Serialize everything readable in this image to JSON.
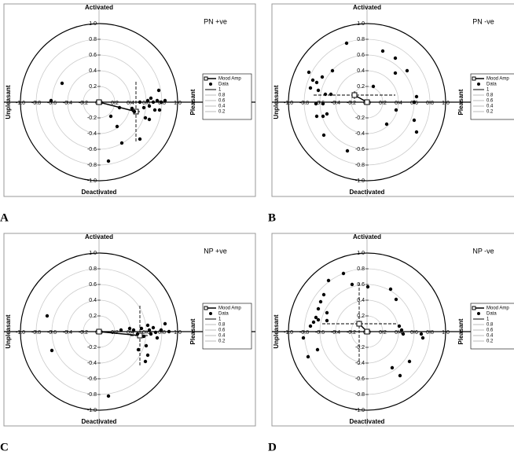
{
  "chart_data": [
    {
      "type": "scatter",
      "panel": "A",
      "title": "PN +ve",
      "top_label": "Activated",
      "bottom_label": "Deactivated",
      "left_label": "Unpleasant",
      "right_label": "Pleasant",
      "xlim": [
        -1,
        1
      ],
      "ylim": [
        -1,
        1
      ],
      "xticks": [
        {
          "value": -1,
          "label": "-1.0"
        },
        {
          "value": -0.8,
          "label": "-0.8"
        },
        {
          "value": -0.6,
          "label": "-0.6"
        },
        {
          "value": -0.4,
          "label": "-0.4"
        },
        {
          "value": -0.2,
          "label": "-0.2"
        },
        {
          "value": 0,
          "label": "0.0"
        },
        {
          "value": 0.2,
          "label": "0.2"
        },
        {
          "value": 0.4,
          "label": "0.4"
        },
        {
          "value": 0.6,
          "label": "0.6"
        },
        {
          "value": 0.8,
          "label": "0.8"
        },
        {
          "value": 1,
          "label": "1.0"
        }
      ],
      "yticks": [
        {
          "value": -1,
          "label": "-1.0"
        },
        {
          "value": -0.8,
          "label": "-0.8"
        },
        {
          "value": -0.6,
          "label": "-0.6"
        },
        {
          "value": -0.4,
          "label": "-0.4"
        },
        {
          "value": -0.2,
          "label": "-0.2"
        },
        {
          "value": 0,
          "label": "0.0"
        },
        {
          "value": 0.2,
          "label": "0.2"
        },
        {
          "value": 0.4,
          "label": "0.4"
        },
        {
          "value": 0.6,
          "label": "0.6"
        },
        {
          "value": 0.8,
          "label": "0.8"
        },
        {
          "value": 1,
          "label": "1.0"
        }
      ],
      "rings": [
        1,
        0.8,
        0.6,
        0.4,
        0.2
      ],
      "series": [
        {
          "name": "Mood Amp",
          "color": "#000000",
          "x": [
            0,
            0.47
          ],
          "y": [
            0,
            -0.12
          ],
          "x_error": 0.05,
          "y_error": 0.38
        },
        {
          "name": "Data",
          "color": "#000000",
          "x": [
            -0.61,
            -0.47,
            0.15,
            0.23,
            0.29,
            0.12,
            0.42,
            0.45,
            0.52,
            0.57,
            0.59,
            0.62,
            0.64,
            0.66,
            0.69,
            0.71,
            0.74,
            0.76,
            0.77,
            0.79,
            0.84,
            0.52,
            0.64,
            0.26
          ],
          "y": [
            0.02,
            0.24,
            -0.18,
            -0.31,
            -0.52,
            -0.75,
            -0.08,
            -0.12,
            0,
            -0.07,
            -0.2,
            0.02,
            -0.05,
            0.05,
            0,
            -0.1,
            0.02,
            0.15,
            -0.1,
            0,
            0.02,
            -0.47,
            -0.22,
            -0.07
          ]
        }
      ]
    },
    {
      "type": "scatter",
      "panel": "B",
      "title": "PN -ve",
      "top_label": "Activated",
      "bottom_label": "Deactivated",
      "left_label": "Unpleasant",
      "right_label": "Pleasant",
      "xlim": [
        -1,
        1
      ],
      "ylim": [
        -1,
        1
      ],
      "xticks": [
        {
          "value": -1,
          "label": "-1.0"
        },
        {
          "value": -0.8,
          "label": "-0.8"
        },
        {
          "value": -0.6,
          "label": "-0.6"
        },
        {
          "value": -0.4,
          "label": "-0.4"
        },
        {
          "value": -0.2,
          "label": "-0.2"
        },
        {
          "value": 0,
          "label": "0.0"
        },
        {
          "value": 0.2,
          "label": "0.2"
        },
        {
          "value": 0.4,
          "label": "0.4"
        },
        {
          "value": 0.6,
          "label": "0.6"
        },
        {
          "value": 0.8,
          "label": "0.8"
        },
        {
          "value": 1,
          "label": "1.0"
        }
      ],
      "yticks": [
        {
          "value": -1,
          "label": "-1.0"
        },
        {
          "value": -0.8,
          "label": "-0.8"
        },
        {
          "value": -0.6,
          "label": "-0.6"
        },
        {
          "value": -0.4,
          "label": "-0.4"
        },
        {
          "value": -0.2,
          "label": "-0.2"
        },
        {
          "value": 0,
          "label": "0.0"
        },
        {
          "value": 0.2,
          "label": "0.2"
        },
        {
          "value": 0.4,
          "label": "0.4"
        },
        {
          "value": 0.6,
          "label": "0.6"
        },
        {
          "value": 0.8,
          "label": "0.8"
        },
        {
          "value": 1,
          "label": "1.0"
        }
      ],
      "rings": [
        1,
        0.8,
        0.6,
        0.4,
        0.2
      ],
      "series": [
        {
          "name": "Mood Amp",
          "color": "#000000",
          "x": [
            0,
            -0.16
          ],
          "y": [
            0,
            0.09
          ],
          "x_error": 0.52,
          "y_error": 0.05
        },
        {
          "name": "Data",
          "color": "#000000",
          "x": [
            -0.26,
            0.2,
            0.36,
            0.51,
            0.36,
            -0.74,
            -0.69,
            -0.64,
            -0.57,
            -0.44,
            -0.72,
            -0.62,
            -0.53,
            -0.46,
            -0.65,
            -0.56,
            -0.64,
            -0.56,
            -0.51,
            -0.55,
            -0.25,
            0.08,
            0.25,
            0.37,
            0.63,
            0.6,
            0.6,
            0.63
          ],
          "y": [
            0.75,
            0.65,
            0.56,
            0.4,
            0.37,
            0.38,
            0.28,
            0.25,
            0.32,
            0.4,
            0.18,
            0.15,
            0.1,
            0.1,
            -0.02,
            -0.02,
            -0.18,
            -0.18,
            -0.15,
            -0.42,
            -0.62,
            0.2,
            -0.28,
            -0.1,
            0.07,
            0,
            -0.23,
            -0.38
          ]
        }
      ]
    },
    {
      "type": "scatter",
      "panel": "C",
      "title": "NP +ve",
      "top_label": "Activated",
      "bottom_label": "Deactivated",
      "left_label": "Unpleasant",
      "right_label": "Pleasant",
      "xlim": [
        -1,
        1
      ],
      "ylim": [
        -1,
        1
      ],
      "xticks": [
        {
          "value": -1,
          "label": "-1.0"
        },
        {
          "value": -0.8,
          "label": "-0.8"
        },
        {
          "value": -0.6,
          "label": "-0.6"
        },
        {
          "value": -0.4,
          "label": "-0.4"
        },
        {
          "value": -0.2,
          "label": "-0.2"
        },
        {
          "value": 0,
          "label": "0.0"
        },
        {
          "value": 0.2,
          "label": "0.2"
        },
        {
          "value": 0.4,
          "label": "0.4"
        },
        {
          "value": 0.6,
          "label": "0.6"
        },
        {
          "value": 0.8,
          "label": "0.8"
        },
        {
          "value": 1,
          "label": "1.0"
        }
      ],
      "yticks": [
        {
          "value": -1,
          "label": "-1.0"
        },
        {
          "value": -0.8,
          "label": "-0.8"
        },
        {
          "value": -0.6,
          "label": "-0.6"
        },
        {
          "value": -0.4,
          "label": "-0.4"
        },
        {
          "value": -0.2,
          "label": "-0.2"
        },
        {
          "value": 0,
          "label": "0.0"
        },
        {
          "value": 0.2,
          "label": "0.2"
        },
        {
          "value": 0.4,
          "label": "0.4"
        },
        {
          "value": 0.6,
          "label": "0.6"
        },
        {
          "value": 0.8,
          "label": "0.8"
        },
        {
          "value": 1,
          "label": "1.0"
        }
      ],
      "rings": [
        1,
        0.8,
        0.6,
        0.4,
        0.2
      ],
      "series": [
        {
          "name": "Mood Amp",
          "color": "#000000",
          "x": [
            0,
            0.52
          ],
          "y": [
            0,
            -0.05
          ],
          "x_error": 0.12,
          "y_error": 0.38
        },
        {
          "name": "Data",
          "color": "#000000",
          "x": [
            -0.66,
            -0.6,
            0.12,
            0.39,
            0.44,
            0.49,
            0.54,
            0.57,
            0.6,
            0.62,
            0.64,
            0.66,
            0.69,
            0.72,
            0.74,
            0.79,
            0.84,
            0.89,
            0.62,
            0.59,
            0.5,
            0.28
          ],
          "y": [
            0.2,
            -0.24,
            -0.82,
            0.04,
            0.02,
            -0.03,
            0.04,
            -0.06,
            -0.18,
            0.08,
            0.02,
            -0.03,
            0.05,
            -0.01,
            -0.08,
            0.02,
            0.1,
            0,
            -0.3,
            -0.38,
            -0.23,
            0.02
          ]
        }
      ]
    },
    {
      "type": "scatter",
      "panel": "D",
      "title": "NP -ve",
      "top_label": "Activated",
      "bottom_label": "Deactivated",
      "left_label": "Unpleasant",
      "right_label": "Pleasant",
      "xlim": [
        -1,
        1
      ],
      "ylim": [
        -1,
        1
      ],
      "xticks": [
        {
          "value": -1,
          "label": "-1.0"
        },
        {
          "value": -0.8,
          "label": "-0.8"
        },
        {
          "value": -0.6,
          "label": "-0.6"
        },
        {
          "value": -0.4,
          "label": "-0.4"
        },
        {
          "value": -0.2,
          "label": "-0.2"
        },
        {
          "value": 0,
          "label": "0.0"
        },
        {
          "value": 0.2,
          "label": "0.2"
        },
        {
          "value": 0.4,
          "label": "0.4"
        },
        {
          "value": 0.6,
          "label": "0.6"
        },
        {
          "value": 0.8,
          "label": "0.8"
        },
        {
          "value": 1,
          "label": "1.0"
        }
      ],
      "yticks": [
        {
          "value": -1,
          "label": "-1.0"
        },
        {
          "value": -0.8,
          "label": "-0.8"
        },
        {
          "value": -0.6,
          "label": "-0.6"
        },
        {
          "value": -0.4,
          "label": "-0.4"
        },
        {
          "value": -0.2,
          "label": "-0.2"
        },
        {
          "value": 0,
          "label": "0.0"
        },
        {
          "value": 0.2,
          "label": "0.2"
        },
        {
          "value": 0.4,
          "label": "0.4"
        },
        {
          "value": 0.6,
          "label": "0.6"
        },
        {
          "value": 0.8,
          "label": "0.8"
        },
        {
          "value": 1,
          "label": "1.0"
        }
      ],
      "rings": [
        1,
        0.8,
        0.6,
        0.4,
        0.2
      ],
      "series": [
        {
          "name": "Mood Amp",
          "color": "#000000",
          "x": [
            0,
            -0.1
          ],
          "y": [
            0,
            0.1
          ],
          "x_error": 0.47,
          "y_error": 0.52
        },
        {
          "name": "Data",
          "color": "#000000",
          "x": [
            -0.3,
            -0.19,
            0.01,
            0.3,
            0.37,
            -0.49,
            -0.55,
            -0.59,
            -0.62,
            -0.51,
            -0.65,
            -0.68,
            -0.62,
            -0.72,
            -0.51,
            -0.81,
            -0.63,
            -0.75,
            0.41,
            0.44,
            0.46,
            0.69,
            0.71,
            0.54,
            0.32,
            0.42
          ],
          "y": [
            0.74,
            0.6,
            0.57,
            0.54,
            0.41,
            0.65,
            0.47,
            0.38,
            0.29,
            0.24,
            0.18,
            0.12,
            0.15,
            0.07,
            0.14,
            -0.08,
            -0.23,
            -0.32,
            0.07,
            0.02,
            -0.03,
            -0.03,
            -0.08,
            -0.38,
            -0.46,
            -0.56
          ]
        }
      ]
    }
  ]
}
